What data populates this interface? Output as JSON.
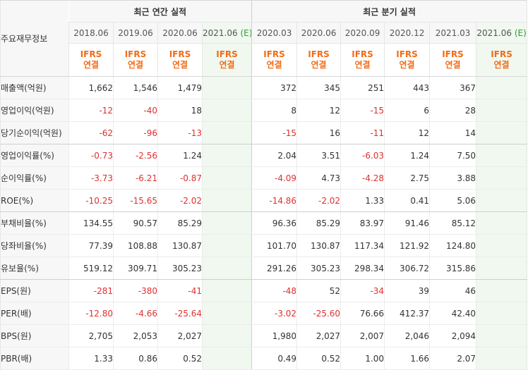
{
  "header": {
    "row_title": "주요재무정보",
    "annual_title": "최근 연간 실적",
    "quarter_title": "최근 분기 실적",
    "accounting_top": "IFRS",
    "accounting_bottom": "연결",
    "annual_periods": [
      "2018.06",
      "2019.06",
      "2020.06",
      "2021.06"
    ],
    "estimate_mark": "(E)",
    "quarter_periods": [
      "2020.03",
      "2020.06",
      "2020.09",
      "2020.12",
      "2021.03",
      "2021.06"
    ]
  },
  "rows": [
    {
      "label": "매출액(억원)",
      "annual": [
        "1,662",
        "1,546",
        "1,479",
        ""
      ],
      "quarter": [
        "372",
        "345",
        "251",
        "443",
        "367",
        ""
      ]
    },
    {
      "label": "영업이익(억원)",
      "annual": [
        "-12",
        "-40",
        "18",
        ""
      ],
      "quarter": [
        "8",
        "12",
        "-15",
        "6",
        "28",
        ""
      ]
    },
    {
      "label": "당기순이익(억원)",
      "annual": [
        "-62",
        "-96",
        "-13",
        ""
      ],
      "quarter": [
        "-15",
        "16",
        "-11",
        "12",
        "14",
        ""
      ]
    },
    {
      "label": "영업이익률(%)",
      "annual": [
        "-0.73",
        "-2.56",
        "1.24",
        ""
      ],
      "quarter": [
        "2.04",
        "3.51",
        "-6.03",
        "1.24",
        "7.50",
        ""
      ]
    },
    {
      "label": "순이익률(%)",
      "annual": [
        "-3.73",
        "-6.21",
        "-0.87",
        ""
      ],
      "quarter": [
        "-4.09",
        "4.73",
        "-4.28",
        "2.75",
        "3.88",
        ""
      ]
    },
    {
      "label": "ROE(%)",
      "annual": [
        "-10.25",
        "-15.65",
        "-2.02",
        ""
      ],
      "quarter": [
        "-14.86",
        "-2.02",
        "1.33",
        "0.41",
        "5.06",
        ""
      ]
    },
    {
      "label": "부채비율(%)",
      "annual": [
        "134.55",
        "90.57",
        "85.29",
        ""
      ],
      "quarter": [
        "96.36",
        "85.29",
        "83.97",
        "91.46",
        "85.12",
        ""
      ]
    },
    {
      "label": "당좌비율(%)",
      "annual": [
        "77.39",
        "108.88",
        "130.87",
        ""
      ],
      "quarter": [
        "101.70",
        "130.87",
        "117.34",
        "121.92",
        "124.80",
        ""
      ]
    },
    {
      "label": "유보율(%)",
      "annual": [
        "519.12",
        "309.71",
        "305.23",
        ""
      ],
      "quarter": [
        "291.26",
        "305.23",
        "298.34",
        "306.72",
        "315.86",
        ""
      ]
    },
    {
      "label": "EPS(원)",
      "annual": [
        "-281",
        "-380",
        "-41",
        ""
      ],
      "quarter": [
        "-48",
        "52",
        "-34",
        "39",
        "46",
        ""
      ]
    },
    {
      "label": "PER(배)",
      "annual": [
        "-12.80",
        "-4.66",
        "-25.64",
        ""
      ],
      "quarter": [
        "-3.02",
        "-25.60",
        "76.66",
        "412.37",
        "42.40",
        ""
      ]
    },
    {
      "label": "BPS(원)",
      "annual": [
        "2,705",
        "2,053",
        "2,027",
        ""
      ],
      "quarter": [
        "1,980",
        "2,027",
        "2,007",
        "2,046",
        "2,094",
        ""
      ]
    },
    {
      "label": "PBR(배)",
      "annual": [
        "1.33",
        "0.86",
        "0.52",
        ""
      ],
      "quarter": [
        "0.49",
        "0.52",
        "1.00",
        "1.66",
        "2.07",
        ""
      ]
    }
  ],
  "colors": {
    "negative": "#e03030",
    "accounting": "#f26b15",
    "estimate_bg": "#f0f8f0",
    "estimate_mark": "#2f9e2f"
  }
}
